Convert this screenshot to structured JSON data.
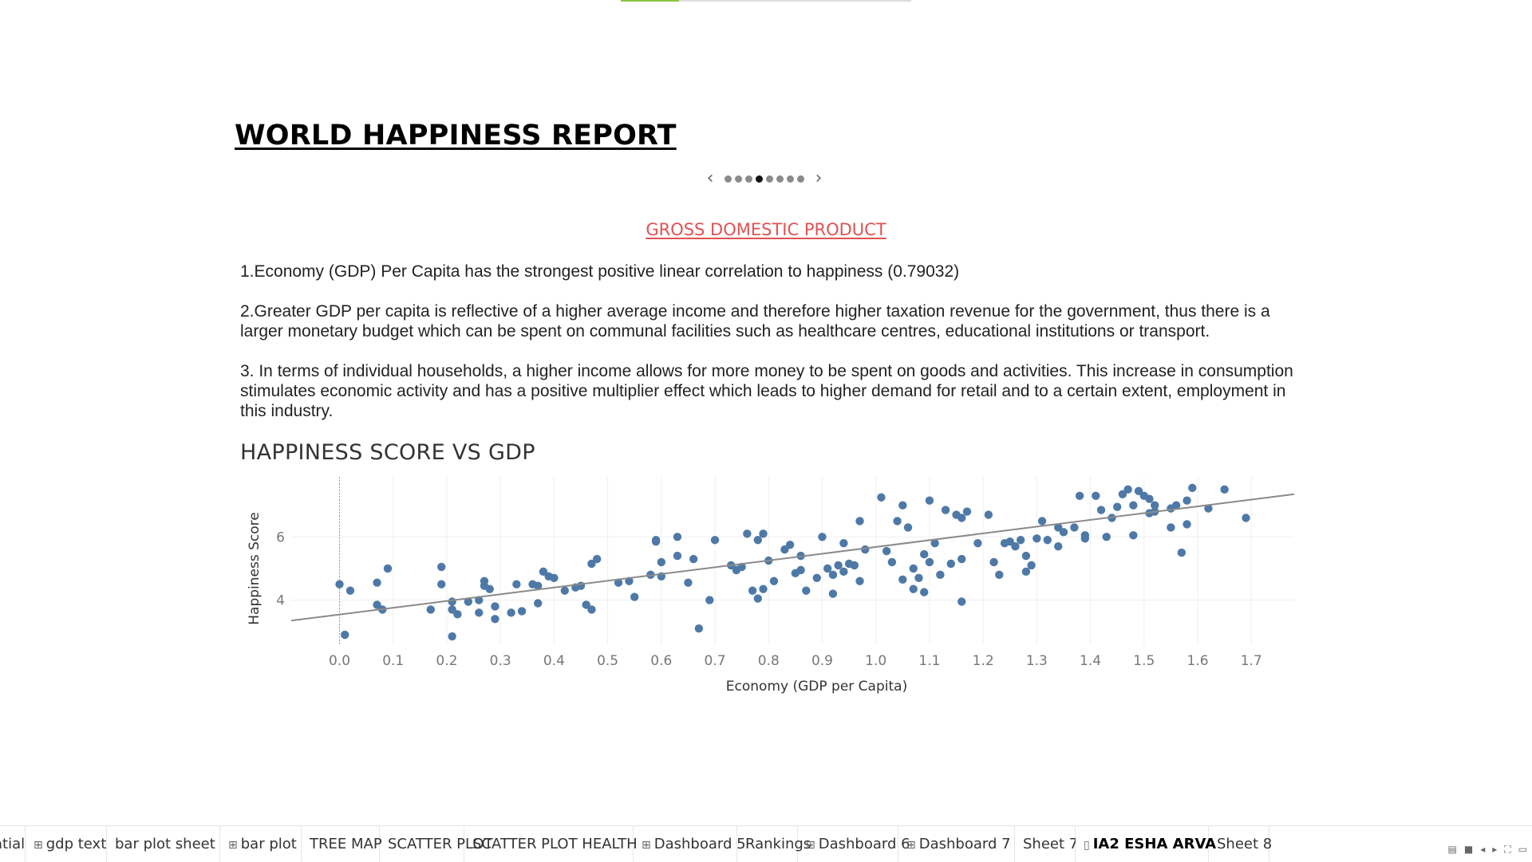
{
  "progress": {
    "fraction": 0.2
  },
  "report": {
    "title": "WORLD HAPPINESS REPORT"
  },
  "pager": {
    "prev_icon": "chevron-left-icon",
    "next_icon": "chevron-right-icon",
    "count": 8,
    "active_index": 3
  },
  "section": {
    "title": "GROSS DOMESTIC PRODUCT"
  },
  "paragraphs": {
    "p1": "1.Economy (GDP) Per Capita has the strongest positive linear correlation to happiness (0.79032)",
    "p2": "2.Greater GDP per capita is reflective of a higher average income and therefore higher taxation revenue for the government, thus there is a larger monetary budget which can be spent on communal facilities such as healthcare centres, educational institutions or transport.",
    "p3": "3. In terms of individual households, a higher income allows for more money to be spent on goods and activities. This increase in consumption stimulates economic activity and has a positive multiplier effect which leads to higher demand for retail and to a certain extent, employment in this industry."
  },
  "chart_title": "HAPPINESS SCORE VS GDP",
  "chart_data": {
    "type": "scatter",
    "title": "HAPPINESS SCORE VS GDP",
    "xlabel": "Economy (GDP per Capita)",
    "ylabel": "Happiness Score",
    "xlim": [
      -0.09,
      1.78
    ],
    "ylim": [
      2.6,
      7.9
    ],
    "x_ticks": [
      "0.0",
      "0.1",
      "0.2",
      "0.3",
      "0.4",
      "0.5",
      "0.6",
      "0.7",
      "0.8",
      "0.9",
      "1.0",
      "1.1",
      "1.2",
      "1.3",
      "1.4",
      "1.5",
      "1.6",
      "1.7"
    ],
    "y_ticks": [
      "4",
      "6"
    ],
    "grid": true,
    "point_color": "#4e79a7",
    "trend_line": {
      "x": [
        -0.09,
        1.78
      ],
      "y": [
        3.35,
        7.35
      ],
      "color": "#8a8a8a"
    },
    "points": [
      [
        0.0,
        4.5
      ],
      [
        0.02,
        4.3
      ],
      [
        0.01,
        2.9
      ],
      [
        0.07,
        3.85
      ],
      [
        0.07,
        4.55
      ],
      [
        0.08,
        3.7
      ],
      [
        0.09,
        5.0
      ],
      [
        0.17,
        3.7
      ],
      [
        0.19,
        5.05
      ],
      [
        0.19,
        4.5
      ],
      [
        0.21,
        3.95
      ],
      [
        0.21,
        3.7
      ],
      [
        0.21,
        2.85
      ],
      [
        0.22,
        3.55
      ],
      [
        0.24,
        3.95
      ],
      [
        0.26,
        4.0
      ],
      [
        0.26,
        3.6
      ],
      [
        0.27,
        4.45
      ],
      [
        0.27,
        4.6
      ],
      [
        0.28,
        4.35
      ],
      [
        0.29,
        3.8
      ],
      [
        0.29,
        3.4
      ],
      [
        0.32,
        3.6
      ],
      [
        0.33,
        4.5
      ],
      [
        0.34,
        3.65
      ],
      [
        0.36,
        4.5
      ],
      [
        0.37,
        3.9
      ],
      [
        0.37,
        4.45
      ],
      [
        0.38,
        4.9
      ],
      [
        0.39,
        4.75
      ],
      [
        0.4,
        4.7
      ],
      [
        0.42,
        4.3
      ],
      [
        0.44,
        4.4
      ],
      [
        0.45,
        4.45
      ],
      [
        0.46,
        3.85
      ],
      [
        0.47,
        3.7
      ],
      [
        0.47,
        5.15
      ],
      [
        0.48,
        5.3
      ],
      [
        0.52,
        4.55
      ],
      [
        0.54,
        4.6
      ],
      [
        0.55,
        4.1
      ],
      [
        0.58,
        4.8
      ],
      [
        0.59,
        5.85
      ],
      [
        0.59,
        5.9
      ],
      [
        0.6,
        5.2
      ],
      [
        0.6,
        4.75
      ],
      [
        0.63,
        5.4
      ],
      [
        0.63,
        6.0
      ],
      [
        0.65,
        4.55
      ],
      [
        0.66,
        5.3
      ],
      [
        0.67,
        3.1
      ],
      [
        0.69,
        4.0
      ],
      [
        0.7,
        5.9
      ],
      [
        0.73,
        5.1
      ],
      [
        0.74,
        4.95
      ],
      [
        0.75,
        5.05
      ],
      [
        0.76,
        6.1
      ],
      [
        0.77,
        4.3
      ],
      [
        0.78,
        4.05
      ],
      [
        0.78,
        5.9
      ],
      [
        0.79,
        6.1
      ],
      [
        0.79,
        4.35
      ],
      [
        0.8,
        5.25
      ],
      [
        0.81,
        4.6
      ],
      [
        0.83,
        5.6
      ],
      [
        0.84,
        5.75
      ],
      [
        0.85,
        4.85
      ],
      [
        0.86,
        5.4
      ],
      [
        0.86,
        4.95
      ],
      [
        0.87,
        4.3
      ],
      [
        0.89,
        4.7
      ],
      [
        0.9,
        6.0
      ],
      [
        0.91,
        5.0
      ],
      [
        0.92,
        4.2
      ],
      [
        0.92,
        4.8
      ],
      [
        0.93,
        5.1
      ],
      [
        0.94,
        5.8
      ],
      [
        0.94,
        4.9
      ],
      [
        0.95,
        5.15
      ],
      [
        0.96,
        5.1
      ],
      [
        0.97,
        6.5
      ],
      [
        0.97,
        4.6
      ],
      [
        0.98,
        5.6
      ],
      [
        1.01,
        7.25
      ],
      [
        1.02,
        5.55
      ],
      [
        1.03,
        5.2
      ],
      [
        1.04,
        6.5
      ],
      [
        1.05,
        7.0
      ],
      [
        1.05,
        4.65
      ],
      [
        1.06,
        6.3
      ],
      [
        1.07,
        5.0
      ],
      [
        1.07,
        4.35
      ],
      [
        1.08,
        4.7
      ],
      [
        1.09,
        5.45
      ],
      [
        1.09,
        4.25
      ],
      [
        1.1,
        7.15
      ],
      [
        1.1,
        5.2
      ],
      [
        1.11,
        5.8
      ],
      [
        1.12,
        4.8
      ],
      [
        1.13,
        6.85
      ],
      [
        1.14,
        5.15
      ],
      [
        1.15,
        6.7
      ],
      [
        1.16,
        6.6
      ],
      [
        1.16,
        3.95
      ],
      [
        1.16,
        5.3
      ],
      [
        1.17,
        6.8
      ],
      [
        1.19,
        5.8
      ],
      [
        1.21,
        6.7
      ],
      [
        1.22,
        5.2
      ],
      [
        1.23,
        4.8
      ],
      [
        1.24,
        5.8
      ],
      [
        1.25,
        5.85
      ],
      [
        1.26,
        5.7
      ],
      [
        1.27,
        5.9
      ],
      [
        1.28,
        4.9
      ],
      [
        1.28,
        5.4
      ],
      [
        1.29,
        5.1
      ],
      [
        1.3,
        5.95
      ],
      [
        1.31,
        6.5
      ],
      [
        1.32,
        5.9
      ],
      [
        1.34,
        6.3
      ],
      [
        1.34,
        5.7
      ],
      [
        1.35,
        6.15
      ],
      [
        1.37,
        6.3
      ],
      [
        1.38,
        7.3
      ],
      [
        1.39,
        5.95
      ],
      [
        1.39,
        6.05
      ],
      [
        1.41,
        7.3
      ],
      [
        1.42,
        6.85
      ],
      [
        1.43,
        6.0
      ],
      [
        1.44,
        6.6
      ],
      [
        1.45,
        6.95
      ],
      [
        1.46,
        7.35
      ],
      [
        1.47,
        7.5
      ],
      [
        1.48,
        6.05
      ],
      [
        1.48,
        7.0
      ],
      [
        1.49,
        7.45
      ],
      [
        1.5,
        7.3
      ],
      [
        1.51,
        6.75
      ],
      [
        1.51,
        7.2
      ],
      [
        1.52,
        7.0
      ],
      [
        1.55,
        6.9
      ],
      [
        1.57,
        5.5
      ],
      [
        1.58,
        7.15
      ],
      [
        1.58,
        6.4
      ],
      [
        1.59,
        7.55
      ],
      [
        1.62,
        6.9
      ],
      [
        1.65,
        7.5
      ],
      [
        1.52,
        6.8
      ],
      [
        1.55,
        6.3
      ],
      [
        1.56,
        7.0
      ],
      [
        1.69,
        6.6
      ]
    ]
  },
  "tabs": [
    {
      "label": "atial",
      "icon": ""
    },
    {
      "label": "gdp text",
      "icon": "dashboard-icon"
    },
    {
      "label": "bar plot sheet",
      "icon": ""
    },
    {
      "label": "bar plot",
      "icon": "dashboard-icon"
    },
    {
      "label": "TREE MAP",
      "icon": ""
    },
    {
      "label": "SCATTER PLOT",
      "icon": ""
    },
    {
      "label": "SCATTER PLOT HEALTH",
      "icon": ""
    },
    {
      "label": "Dashboard 5",
      "icon": "dashboard-icon"
    },
    {
      "label": "Rankings",
      "icon": ""
    },
    {
      "label": "Dashboard 6",
      "icon": "dashboard-icon"
    },
    {
      "label": "Dashboard 7",
      "icon": "dashboard-icon"
    },
    {
      "label": "Sheet 7",
      "icon": ""
    },
    {
      "label": "IA2 ESHA ARVA",
      "icon": "story-icon",
      "active": true
    },
    {
      "label": "Sheet 8",
      "icon": ""
    }
  ]
}
